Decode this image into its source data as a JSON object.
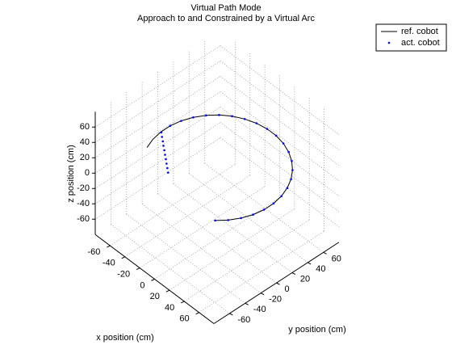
{
  "chart_data": {
    "type": "scatter3d",
    "title": "Virtual Path Mode",
    "subtitle": "Approach to and Constrained by a Virtual Arc",
    "xlabel": "x position (cm)",
    "ylabel": "y position (cm)",
    "zlabel": "z position (cm)",
    "xlim": [
      -80,
      80
    ],
    "ylim": [
      -80,
      80
    ],
    "zlim": [
      -80,
      80
    ],
    "xticks": [
      -60,
      -40,
      -20,
      0,
      20,
      40,
      60
    ],
    "yticks": [
      -60,
      -40,
      -20,
      0,
      20,
      40,
      60
    ],
    "zticks": [
      -60,
      -40,
      -20,
      0,
      20,
      40,
      60
    ],
    "grid": true,
    "legend": "upper right",
    "series": [
      {
        "name": "ref. cobot",
        "color": "#000000",
        "style": "line",
        "x": [
          -63.4,
          -67.6,
          -69.7,
          -69.7,
          -67.6,
          -63.4,
          -57.3,
          -49.5,
          -40.2,
          -29.6,
          -18.1,
          -6.1,
          6.1,
          18.1,
          29.6,
          40.2,
          49.5,
          57.3,
          63.4,
          67.6,
          69.7,
          69.7,
          67.6,
          63.4,
          57.3,
          49.5
        ],
        "y": [
          -29.6,
          -18.1,
          -6.1,
          6.1,
          18.1,
          29.6,
          40.2,
          49.5,
          57.3,
          63.4,
          67.6,
          69.7,
          69.7,
          67.6,
          63.4,
          57.3,
          49.5,
          40.2,
          29.6,
          18.1,
          6.1,
          -6.1,
          -18.1,
          -29.6,
          -40.2,
          -49.5
        ],
        "z": [
          12,
          12,
          12,
          12,
          12,
          12,
          12,
          12,
          12,
          12,
          12,
          12,
          12,
          12,
          12,
          12,
          12,
          12,
          12,
          12,
          12,
          12,
          12,
          12,
          12,
          12
        ]
      },
      {
        "name": "act. cobot",
        "color": "#0000ff",
        "style": "points",
        "x": [
          -26,
          -30.8,
          -35.6,
          -40.3,
          -45.1,
          -49.9,
          -54.7,
          -59.4,
          -64.2,
          -69,
          -69.7,
          -67.6,
          -63.4,
          -57.3,
          -49.5,
          -40.2,
          -29.6,
          -18.1,
          -6.1,
          6.1,
          18.1,
          29.6,
          40.2,
          49.5,
          57.3,
          63.4,
          67.6,
          69.7,
          69.7,
          67.6,
          63.4,
          57.3,
          49.5
        ],
        "y": [
          -38,
          -34.4,
          -30.9,
          -27.3,
          -23.8,
          -20.2,
          -16.7,
          -13.1,
          -9.6,
          -6,
          6.1,
          18.1,
          29.6,
          40.2,
          49.5,
          57.3,
          63.4,
          67.6,
          69.7,
          69.7,
          67.6,
          63.4,
          57.3,
          49.5,
          40.2,
          29.6,
          18.1,
          6.1,
          -6.1,
          -18.1,
          -29.6,
          -40.2,
          -49.5
        ],
        "z": [
          12,
          12,
          12,
          12,
          12,
          12,
          12,
          12,
          12,
          12,
          12,
          12,
          12,
          12,
          12,
          12,
          12,
          12,
          12,
          12,
          12,
          12,
          12,
          12,
          12,
          12,
          12,
          12,
          12,
          12,
          12,
          12,
          12
        ]
      }
    ]
  }
}
